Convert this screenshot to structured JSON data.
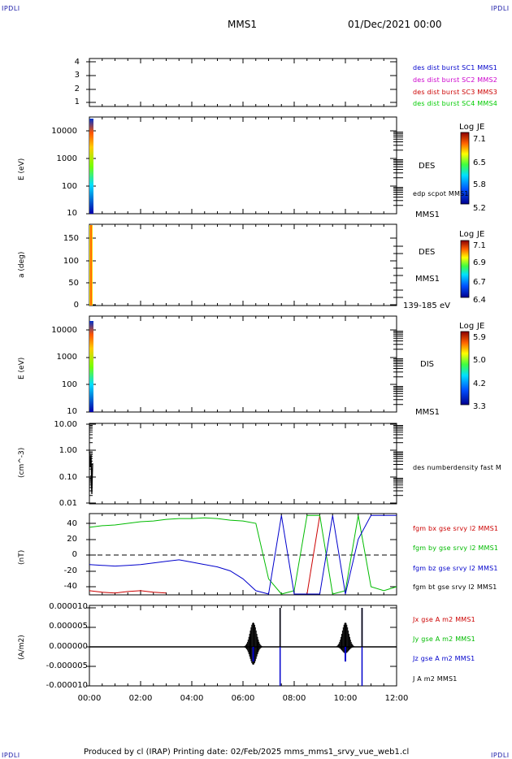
{
  "header": {
    "left_corner": "IPDLI",
    "right_corner": "IPDLI",
    "title": "MMS1",
    "date": "01/Dec/2021 00:00"
  },
  "footer": {
    "text": "Produced by cl (IRAP)   Printing date: 02/Feb/2025   mms_mms1_srvy_vue_web1.cl",
    "left_corner": "IPDLI",
    "right_corner": "IPDLI"
  },
  "x_axis": {
    "ticks": [
      "00:00",
      "02:00",
      "04:00",
      "06:00",
      "08:00",
      "10:00",
      "12:00"
    ]
  },
  "panels": {
    "p1": {
      "yticks": [
        "4",
        "3",
        "2",
        "1"
      ],
      "legend": [
        {
          "label": "des dist burst SC1 MMS1",
          "color": "#0000cc"
        },
        {
          "label": "des dist burst SC2 MMS2",
          "color": "#cc00cc"
        },
        {
          "label": "des dist burst SC3 MMS3",
          "color": "#cc0000"
        },
        {
          "label": "des dist burst SC4 MMS4",
          "color": "#00cc00"
        }
      ]
    },
    "p2": {
      "ylabel": "E (eV)",
      "yticks": [
        "10000",
        "1000",
        "100",
        "10"
      ],
      "side1": "DES",
      "side2": "edp scpot MMS1",
      "side3": "MMS1",
      "cb_title": "Log JE",
      "cb_ticks": [
        "7.1",
        "6.5",
        "5.8",
        "5.2"
      ]
    },
    "p3": {
      "ylabel": "a (deg)",
      "yticks": [
        "150",
        "100",
        "50",
        "0"
      ],
      "side1": "DES",
      "side2": "MMS1",
      "side3": "139-185 eV",
      "cb_title": "Log JE",
      "cb_ticks": [
        "7.1",
        "6.9",
        "6.7",
        "6.4"
      ]
    },
    "p4": {
      "ylabel": "E (eV)",
      "yticks": [
        "10000",
        "1000",
        "100",
        "10"
      ],
      "side1": "DIS",
      "side2": "MMS1",
      "cb_title": "Log JE",
      "cb_ticks": [
        "5.9",
        "5.0",
        "4.2",
        "3.3"
      ]
    },
    "p5": {
      "ylabel": "(cm^-3)",
      "yticks": [
        "10.00",
        "1.00",
        "0.10",
        "0.01"
      ],
      "legend": "des numberdensity fast M"
    },
    "p6": {
      "ylabel": "(nT)",
      "yticks": [
        "40",
        "20",
        "0",
        "-20",
        "-40"
      ],
      "legend": [
        {
          "label": "fgm bx gse srvy l2 MMS1",
          "color": "#cc0000"
        },
        {
          "label": "fgm by gse srvy l2 MMS1",
          "color": "#00bb00"
        },
        {
          "label": "fgm bz gse srvy l2 MMS1",
          "color": "#0000cc"
        },
        {
          "label": "fgm bt gse srvy l2 MMS1",
          "color": "#000000"
        }
      ]
    },
    "p7": {
      "ylabel": "(A/m2)",
      "yticks": [
        "0.000010",
        "0.000005",
        "0.000000",
        "-0.000005",
        "-0.000010"
      ],
      "legend": [
        {
          "label": "Jx gse A m2 MMS1",
          "color": "#cc0000"
        },
        {
          "label": "Jy gse A m2 MMS1",
          "color": "#00bb00"
        },
        {
          "label": "Jz gse A m2 MMS1",
          "color": "#0000cc"
        },
        {
          "label": "J A m2 MMS1",
          "color": "#000000"
        }
      ]
    }
  },
  "chart_data": [
    {
      "type": "line",
      "title": "",
      "ylabel": "",
      "yticks": [
        1,
        2,
        3,
        4
      ],
      "note": "burst interval indicators (empty)"
    },
    {
      "type": "heatmap",
      "ylabel": "E (eV)",
      "yscale": "log",
      "ylim": [
        10,
        30000
      ],
      "colorbar": {
        "title": "Log JE",
        "ticks": [
          5.2,
          5.8,
          6.5,
          7.1
        ]
      },
      "data_x_range": [
        "00:00",
        "00:10"
      ]
    },
    {
      "type": "heatmap",
      "ylabel": "a (deg)",
      "ylim": [
        0,
        180
      ],
      "colorbar": {
        "title": "Log JE",
        "ticks": [
          6.4,
          6.7,
          6.9,
          7.1
        ]
      },
      "data_x_range": [
        "00:00",
        "00:10"
      ]
    },
    {
      "type": "heatmap",
      "ylabel": "E (eV)",
      "yscale": "log",
      "ylim": [
        10,
        30000
      ],
      "colorbar": {
        "title": "Log JE",
        "ticks": [
          3.3,
          4.2,
          5.0,
          5.9
        ]
      },
      "data_x_range": [
        "00:00",
        "00:10"
      ]
    },
    {
      "type": "line",
      "ylabel": "(cm^-3)",
      "yscale": "log",
      "ylim": [
        0.01,
        10
      ],
      "series": [
        {
          "name": "des numberdensity fast M",
          "x": [
            "00:00",
            "00:02",
            "00:04",
            "00:06",
            "00:08",
            "00:10"
          ],
          "values": [
            1.2,
            0.3,
            0.6,
            0.05,
            0.25,
            0.03
          ]
        }
      ]
    },
    {
      "type": "line",
      "ylabel": "(nT)",
      "ylim": [
        -50,
        50
      ],
      "x": [
        "00:00",
        "00:30",
        "01:00",
        "01:30",
        "02:00",
        "02:30",
        "03:00",
        "03:30",
        "04:00",
        "04:30",
        "05:00",
        "05:30",
        "06:00",
        "06:30",
        "07:00",
        "07:30",
        "08:00",
        "08:30",
        "09:00",
        "09:30",
        "10:00",
        "10:30",
        "11:00",
        "11:30",
        "12:00"
      ],
      "series": [
        {
          "name": "fgm bx gse srvy l2 MMS1",
          "values": [
            -45,
            -47,
            -48,
            -46,
            -45,
            -47,
            -48,
            null,
            null,
            null,
            null,
            null,
            null,
            null,
            null,
            null,
            null,
            -50,
            50,
            null,
            null,
            null,
            null,
            null,
            null
          ]
        },
        {
          "name": "fgm by gse srvy l2 MMS1",
          "values": [
            35,
            37,
            38,
            40,
            42,
            43,
            45,
            46,
            46,
            47,
            46,
            44,
            43,
            40,
            -30,
            -50,
            -45,
            50,
            50,
            -50,
            -45,
            50,
            -40,
            -45,
            -40
          ]
        },
        {
          "name": "fgm bz gse srvy l2 MMS1",
          "values": [
            -12,
            -13,
            -14,
            -13,
            -12,
            -10,
            -8,
            -6,
            -9,
            -12,
            -15,
            -20,
            -30,
            -45,
            -50,
            50,
            -50,
            -50,
            -50,
            50,
            -50,
            20,
            50,
            50,
            50
          ]
        }
      ]
    },
    {
      "type": "line",
      "ylabel": "(A/m2)",
      "ylim": [
        -1e-05,
        1e-05
      ],
      "series": [
        {
          "name": "Jx gse A m2 MMS1",
          "values": [
            0
          ]
        },
        {
          "name": "Jy gse A m2 MMS1",
          "values": [
            0
          ]
        },
        {
          "name": "Jz gse A m2 MMS1",
          "values": [
            0
          ]
        },
        {
          "name": "J A m2 MMS1",
          "values": [
            0
          ]
        }
      ]
    }
  ]
}
